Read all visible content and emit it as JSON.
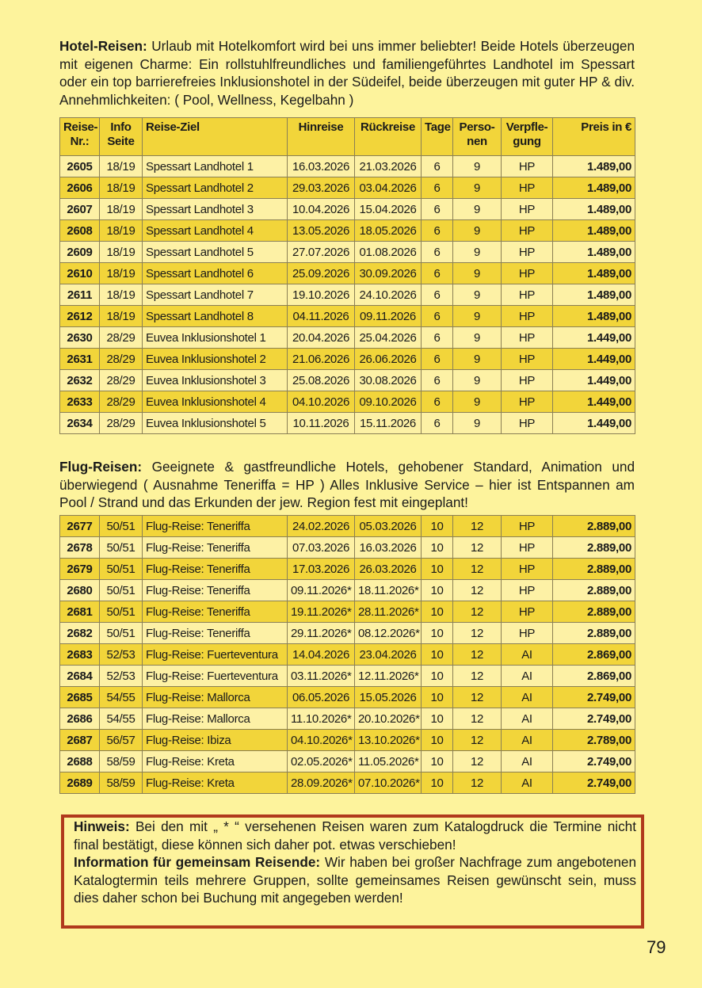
{
  "hotel": {
    "heading": "Hotel-Reisen:",
    "text": "Urlaub mit Hotelkomfort wird bei uns immer beliebter! Beide Hotels überzeugen mit eigenen Charme: Ein rollstuhlfreundliches und familiengeführtes Landhotel im Spessart oder ein top barrierefreies Inklusionshotel in der Südeifel, beide überzeugen mit guter HP & div. Annehmlichkeiten: ( Pool, Wellness, Kegelbahn )"
  },
  "columns": [
    "Reise-\nNr.:",
    "Info\nSeite",
    "Reise-Ziel",
    "Hinreise",
    "Rückreise",
    "Tage",
    "Perso-\nnen",
    "Verpfle-\ngung",
    "Preis in €"
  ],
  "hotel_rows": [
    [
      "2605",
      "18/19",
      "Spessart Landhotel 1",
      "16.03.2026",
      "21.03.2026",
      "6",
      "9",
      "HP",
      "1.489,00"
    ],
    [
      "2606",
      "18/19",
      "Spessart Landhotel 2",
      "29.03.2026",
      "03.04.2026",
      "6",
      "9",
      "HP",
      "1.489,00"
    ],
    [
      "2607",
      "18/19",
      "Spessart Landhotel 3",
      "10.04.2026",
      "15.04.2026",
      "6",
      "9",
      "HP",
      "1.489,00"
    ],
    [
      "2608",
      "18/19",
      "Spessart Landhotel 4",
      "13.05.2026",
      "18.05.2026",
      "6",
      "9",
      "HP",
      "1.489,00"
    ],
    [
      "2609",
      "18/19",
      "Spessart Landhotel 5",
      "27.07.2026",
      "01.08.2026",
      "6",
      "9",
      "HP",
      "1.489,00"
    ],
    [
      "2610",
      "18/19",
      "Spessart Landhotel 6",
      "25.09.2026",
      "30.09.2026",
      "6",
      "9",
      "HP",
      "1.489,00"
    ],
    [
      "2611",
      "18/19",
      "Spessart Landhotel 7",
      "19.10.2026",
      "24.10.2026",
      "6",
      "9",
      "HP",
      "1.489,00"
    ],
    [
      "2612",
      "18/19",
      "Spessart Landhotel 8",
      "04.11.2026",
      "09.11.2026",
      "6",
      "9",
      "HP",
      "1.489,00"
    ],
    [
      "2630",
      "28/29",
      "Euvea Inklusionshotel 1",
      "20.04.2026",
      "25.04.2026",
      "6",
      "9",
      "HP",
      "1.449,00"
    ],
    [
      "2631",
      "28/29",
      "Euvea Inklusionshotel 2",
      "21.06.2026",
      "26.06.2026",
      "6",
      "9",
      "HP",
      "1.449,00"
    ],
    [
      "2632",
      "28/29",
      "Euvea Inklusionshotel 3",
      "25.08.2026",
      "30.08.2026",
      "6",
      "9",
      "HP",
      "1.449,00"
    ],
    [
      "2633",
      "28/29",
      "Euvea Inklusionshotel 4",
      "04.10.2026",
      "09.10.2026",
      "6",
      "9",
      "HP",
      "1.449,00"
    ],
    [
      "2634",
      "28/29",
      "Euvea Inklusionshotel 5",
      "10.11.2026",
      "15.11.2026",
      "6",
      "9",
      "HP",
      "1.449,00"
    ]
  ],
  "flug": {
    "heading": "Flug-Reisen:",
    "text": "Geeignete & gastfreundliche Hotels, gehobener Standard, Animation und überwiegend ( Ausnahme Teneriffa = HP ) Alles Inklusive Service – hier ist Entspannen am Pool / Strand und das Erkunden der jew. Region fest mit eingeplant!"
  },
  "flug_rows": [
    [
      "2677",
      "50/51",
      "Flug-Reise: Teneriffa",
      "24.02.2026",
      "05.03.2026",
      "10",
      "12",
      "HP",
      "2.889,00"
    ],
    [
      "2678",
      "50/51",
      "Flug-Reise: Teneriffa",
      "07.03.2026",
      "16.03.2026",
      "10",
      "12",
      "HP",
      "2.889,00"
    ],
    [
      "2679",
      "50/51",
      "Flug-Reise: Teneriffa",
      "17.03.2026",
      "26.03.2026",
      "10",
      "12",
      "HP",
      "2.889,00"
    ],
    [
      "2680",
      "50/51",
      "Flug-Reise: Teneriffa",
      "09.11.2026*",
      "18.11.2026*",
      "10",
      "12",
      "HP",
      "2.889,00"
    ],
    [
      "2681",
      "50/51",
      "Flug-Reise: Teneriffa",
      "19.11.2026*",
      "28.11.2026*",
      "10",
      "12",
      "HP",
      "2.889,00"
    ],
    [
      "2682",
      "50/51",
      "Flug-Reise: Teneriffa",
      "29.11.2026*",
      "08.12.2026*",
      "10",
      "12",
      "HP",
      "2.889,00"
    ],
    [
      "2683",
      "52/53",
      "Flug-Reise: Fuerteventura",
      "14.04.2026",
      "23.04.2026",
      "10",
      "12",
      "AI",
      "2.869,00"
    ],
    [
      "2684",
      "52/53",
      "Flug-Reise: Fuerteventura",
      "03.11.2026*",
      "12.11.2026*",
      "10",
      "12",
      "AI",
      "2.869,00"
    ],
    [
      "2685",
      "54/55",
      "Flug-Reise: Mallorca",
      "06.05.2026",
      "15.05.2026",
      "10",
      "12",
      "AI",
      "2.749,00"
    ],
    [
      "2686",
      "54/55",
      "Flug-Reise: Mallorca",
      "11.10.2026*",
      "20.10.2026*",
      "10",
      "12",
      "AI",
      "2.749,00"
    ],
    [
      "2687",
      "56/57",
      "Flug-Reise: Ibiza",
      "04.10.2026*",
      "13.10.2026*",
      "10",
      "12",
      "AI",
      "2.789,00"
    ],
    [
      "2688",
      "58/59",
      "Flug-Reise: Kreta",
      "02.05.2026*",
      "11.05.2026*",
      "10",
      "12",
      "AI",
      "2.749,00"
    ],
    [
      "2689",
      "58/59",
      "Flug-Reise: Kreta",
      "28.09.2026*",
      "07.10.2026*",
      "10",
      "12",
      "AI",
      "2.749,00"
    ]
  ],
  "note": {
    "heading1": "Hinweis:",
    "text1": "Bei den mit „ * “ versehenen Reisen waren zum Katalogdruck die Termine nicht final bestätigt, diese können sich daher pot. etwas verschieben!",
    "heading2": "Information für gemeinsam Reisende:",
    "text2": "Wir haben bei großer Nachfrage zum angebotenen Katalogtermin teils mehrere Gruppen, sollte gemeinsames Reisen gewünscht sein, muss dies daher schon bei Buchung mit angegeben werden!"
  },
  "page_number": "79",
  "colors": {
    "background": "#fdf39c",
    "row_highlight": "#f2d53a",
    "row_light": "#fdf1a5",
    "note_border": "#b0391c"
  }
}
